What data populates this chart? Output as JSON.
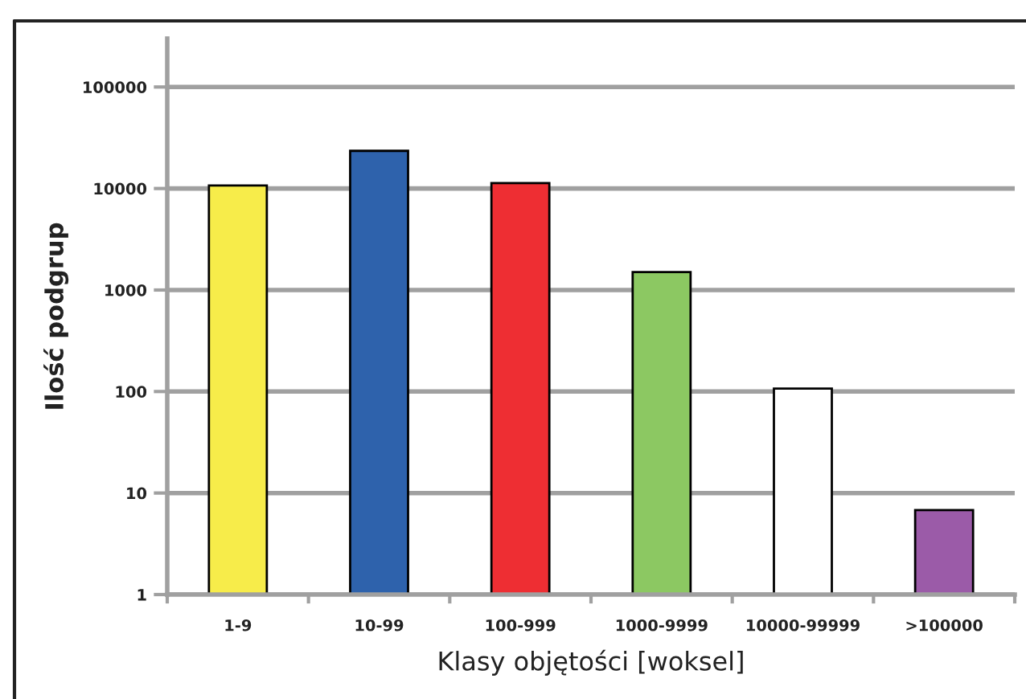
{
  "chart_data": {
    "type": "bar",
    "xlabel": "Klasy objętości [woksel]",
    "ylabel": "Ilość podgrup",
    "categories": [
      "1-9",
      "10-99",
      "100-999",
      "1000-9999",
      "10000-99999",
      ">100000"
    ],
    "values": [
      10700,
      23500,
      11300,
      1500,
      107,
      6.8
    ],
    "colors": [
      "#f7ec4a",
      "#2e62ac",
      "#ee2e33",
      "#8cc862",
      "#ffffff",
      "#9b5ba8"
    ],
    "log": "y",
    "ylim": [
      1,
      300000
    ],
    "yticks": [
      1,
      10,
      100,
      1000,
      10000,
      100000
    ],
    "grid": "y"
  }
}
